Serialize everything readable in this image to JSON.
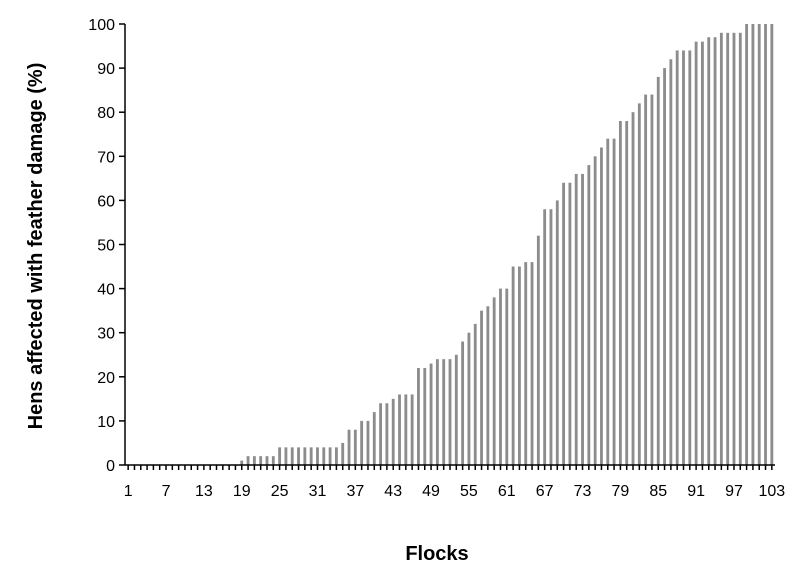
{
  "chart_data": {
    "type": "bar",
    "title": "",
    "xlabel": "Flocks",
    "ylabel": "Hens affected with feather damage (%)",
    "ylim": [
      0,
      100
    ],
    "y_ticks": [
      0,
      10,
      20,
      30,
      40,
      50,
      60,
      70,
      80,
      90,
      100
    ],
    "x_tick_labels": [
      "1",
      "7",
      "13",
      "19",
      "25",
      "31",
      "37",
      "43",
      "49",
      "55",
      "61",
      "67",
      "73",
      "79",
      "85",
      "91",
      "97",
      "103"
    ],
    "categories": [
      "1",
      "2",
      "3",
      "4",
      "5",
      "6",
      "7",
      "8",
      "9",
      "10",
      "11",
      "12",
      "13",
      "14",
      "15",
      "16",
      "17",
      "18",
      "19",
      "20",
      "21",
      "22",
      "23",
      "24",
      "25",
      "26",
      "27",
      "28",
      "29",
      "30",
      "31",
      "32",
      "33",
      "34",
      "35",
      "36",
      "37",
      "38",
      "39",
      "40",
      "41",
      "42",
      "43",
      "44",
      "45",
      "46",
      "47",
      "48",
      "49",
      "50",
      "51",
      "52",
      "53",
      "54",
      "55",
      "56",
      "57",
      "58",
      "59",
      "60",
      "61",
      "62",
      "63",
      "64",
      "65",
      "66",
      "67",
      "68",
      "69",
      "70",
      "71",
      "72",
      "73",
      "74",
      "75",
      "76",
      "77",
      "78",
      "79",
      "80",
      "81",
      "82",
      "83",
      "84",
      "85",
      "86",
      "87",
      "88",
      "89",
      "90",
      "91",
      "92",
      "93",
      "94",
      "95",
      "96",
      "97",
      "98",
      "99",
      "100",
      "101",
      "102",
      "103"
    ],
    "values": [
      0,
      0,
      0,
      0,
      0,
      0,
      0,
      0,
      0,
      0,
      0,
      0,
      0,
      0,
      0,
      0,
      0,
      0,
      1,
      2,
      2,
      2,
      2,
      2,
      4,
      4,
      4,
      4,
      4,
      4,
      4,
      4,
      4,
      4,
      5,
      8,
      8,
      10,
      10,
      12,
      14,
      14,
      15,
      16,
      16,
      16,
      22,
      22,
      23,
      24,
      24,
      24,
      25,
      28,
      30,
      32,
      35,
      36,
      38,
      40,
      40,
      45,
      45,
      46,
      46,
      52,
      58,
      58,
      60,
      64,
      64,
      66,
      66,
      68,
      70,
      72,
      74,
      74,
      78,
      78,
      80,
      82,
      84,
      84,
      88,
      90,
      92,
      94,
      94,
      94,
      96,
      96,
      97,
      97,
      98,
      98,
      98,
      98,
      100,
      100,
      100,
      100,
      100
    ],
    "grid": false,
    "legend": "none",
    "colors": {
      "bar": "#8c8c8c",
      "axis": "#000000"
    }
  }
}
